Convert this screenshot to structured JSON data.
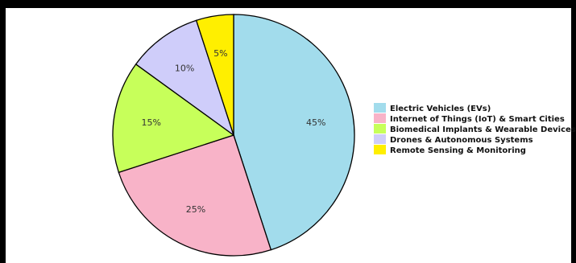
{
  "chart_data": {
    "type": "pie",
    "title": "",
    "labels": [
      "Electric Vehicles (EVs)",
      "Internet of Things (IoT) & Smart Cities",
      "Biomedical Implants & Wearable Devices",
      "Drones & Autonomous Systems",
      "Remote Sensing & Monitoring"
    ],
    "values": [
      45,
      25,
      15,
      10,
      5
    ],
    "value_labels": [
      "45%",
      "25%",
      "15%",
      "10%",
      "5%"
    ],
    "colors": [
      "#a2dcec",
      "#f8b3c8",
      "#c7ff5a",
      "#cfcdfa",
      "#ffef00"
    ],
    "start": "12 o'clock",
    "direction": "clockwise",
    "legend_position": "right"
  }
}
